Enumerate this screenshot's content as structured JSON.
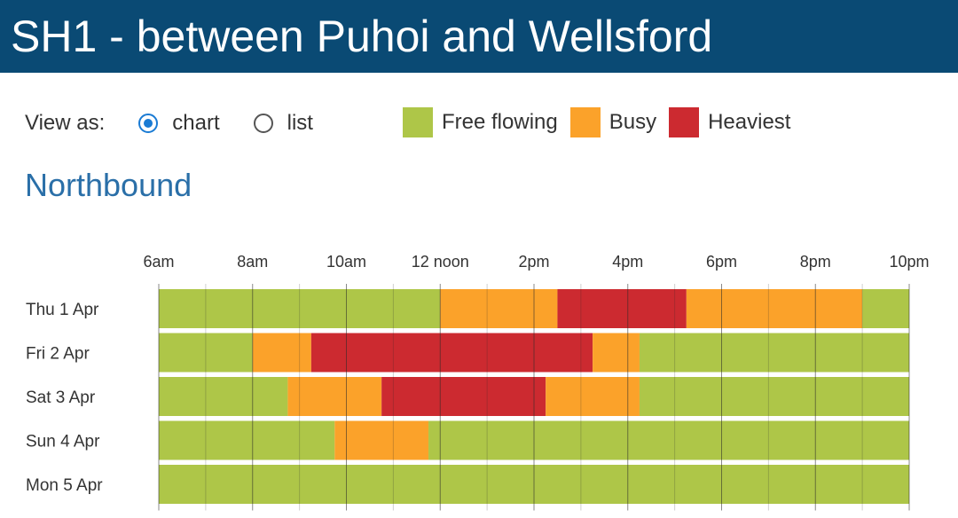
{
  "header": {
    "title": "SH1 - between Puhoi and Wellsford"
  },
  "view_as": {
    "label": "View as:",
    "options": [
      {
        "label": "chart",
        "selected": true
      },
      {
        "label": "list",
        "selected": false
      }
    ]
  },
  "legend": [
    {
      "label": "Free flowing",
      "color": "#aec648"
    },
    {
      "label": "Busy",
      "color": "#fba22a"
    },
    {
      "label": "Heaviest",
      "color": "#cc2a30"
    }
  ],
  "section": {
    "title": "Northbound"
  },
  "chart_data": {
    "type": "heatmap",
    "title": "Northbound",
    "x_axis": {
      "start_hour": 6,
      "end_hour": 22
    },
    "x_ticks": [
      {
        "hour": 6,
        "label": "6am"
      },
      {
        "hour": 8,
        "label": "8am"
      },
      {
        "hour": 10,
        "label": "10am"
      },
      {
        "hour": 12,
        "label": "12 noon"
      },
      {
        "hour": 14,
        "label": "2pm"
      },
      {
        "hour": 16,
        "label": "4pm"
      },
      {
        "hour": 18,
        "label": "6pm"
      },
      {
        "hour": 20,
        "label": "8pm"
      },
      {
        "hour": 22,
        "label": "10pm"
      }
    ],
    "levels": {
      "free": "#aec648",
      "busy": "#fba22a",
      "heavy": "#cc2a30"
    },
    "rows": [
      {
        "label": "Thu 1 Apr",
        "segments": [
          {
            "start": 6,
            "end": 12,
            "level": "free"
          },
          {
            "start": 12,
            "end": 14.5,
            "level": "busy"
          },
          {
            "start": 14.5,
            "end": 17.25,
            "level": "heavy"
          },
          {
            "start": 17.25,
            "end": 21,
            "level": "busy"
          },
          {
            "start": 21,
            "end": 22,
            "level": "free"
          }
        ]
      },
      {
        "label": "Fri 2 Apr",
        "segments": [
          {
            "start": 6,
            "end": 8,
            "level": "free"
          },
          {
            "start": 8,
            "end": 9.25,
            "level": "busy"
          },
          {
            "start": 9.25,
            "end": 15.25,
            "level": "heavy"
          },
          {
            "start": 15.25,
            "end": 16.25,
            "level": "busy"
          },
          {
            "start": 16.25,
            "end": 22,
            "level": "free"
          }
        ]
      },
      {
        "label": "Sat 3 Apr",
        "segments": [
          {
            "start": 6,
            "end": 8.75,
            "level": "free"
          },
          {
            "start": 8.75,
            "end": 10.75,
            "level": "busy"
          },
          {
            "start": 10.75,
            "end": 14.25,
            "level": "heavy"
          },
          {
            "start": 14.25,
            "end": 16.25,
            "level": "busy"
          },
          {
            "start": 16.25,
            "end": 22,
            "level": "free"
          }
        ]
      },
      {
        "label": "Sun 4 Apr",
        "segments": [
          {
            "start": 6,
            "end": 9.75,
            "level": "free"
          },
          {
            "start": 9.75,
            "end": 11.75,
            "level": "busy"
          },
          {
            "start": 11.75,
            "end": 22,
            "level": "free"
          }
        ]
      },
      {
        "label": "Mon 5 Apr",
        "segments": [
          {
            "start": 6,
            "end": 22,
            "level": "free"
          }
        ]
      }
    ]
  }
}
